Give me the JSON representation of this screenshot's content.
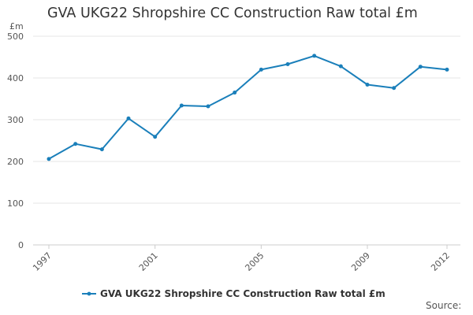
{
  "chart_data": {
    "type": "line",
    "title": "GVA UKG22 Shropshire CC Construction Raw total £m",
    "unit": "£m",
    "source": "Source:",
    "x": [
      "1997",
      "1998",
      "1999",
      "2000",
      "2001",
      "2002",
      "2003",
      "2004",
      "2005",
      "2006",
      "2007",
      "2008",
      "2009",
      "2010",
      "2011",
      "2012"
    ],
    "xtick_labels": [
      "1997",
      "2001",
      "2005",
      "2009",
      "2012"
    ],
    "yticks": [
      0,
      100,
      200,
      300,
      400,
      500
    ],
    "ylim": [
      0,
      500
    ],
    "grid": true,
    "legend_position": "bottom",
    "series": [
      {
        "name": "GVA UKG22 Shropshire CC Construction Raw total £m",
        "color": "#1a7fba",
        "values": [
          206,
          242,
          229,
          303,
          259,
          334,
          332,
          365,
          420,
          433,
          453,
          428,
          384,
          376,
          427,
          420
        ]
      }
    ]
  }
}
